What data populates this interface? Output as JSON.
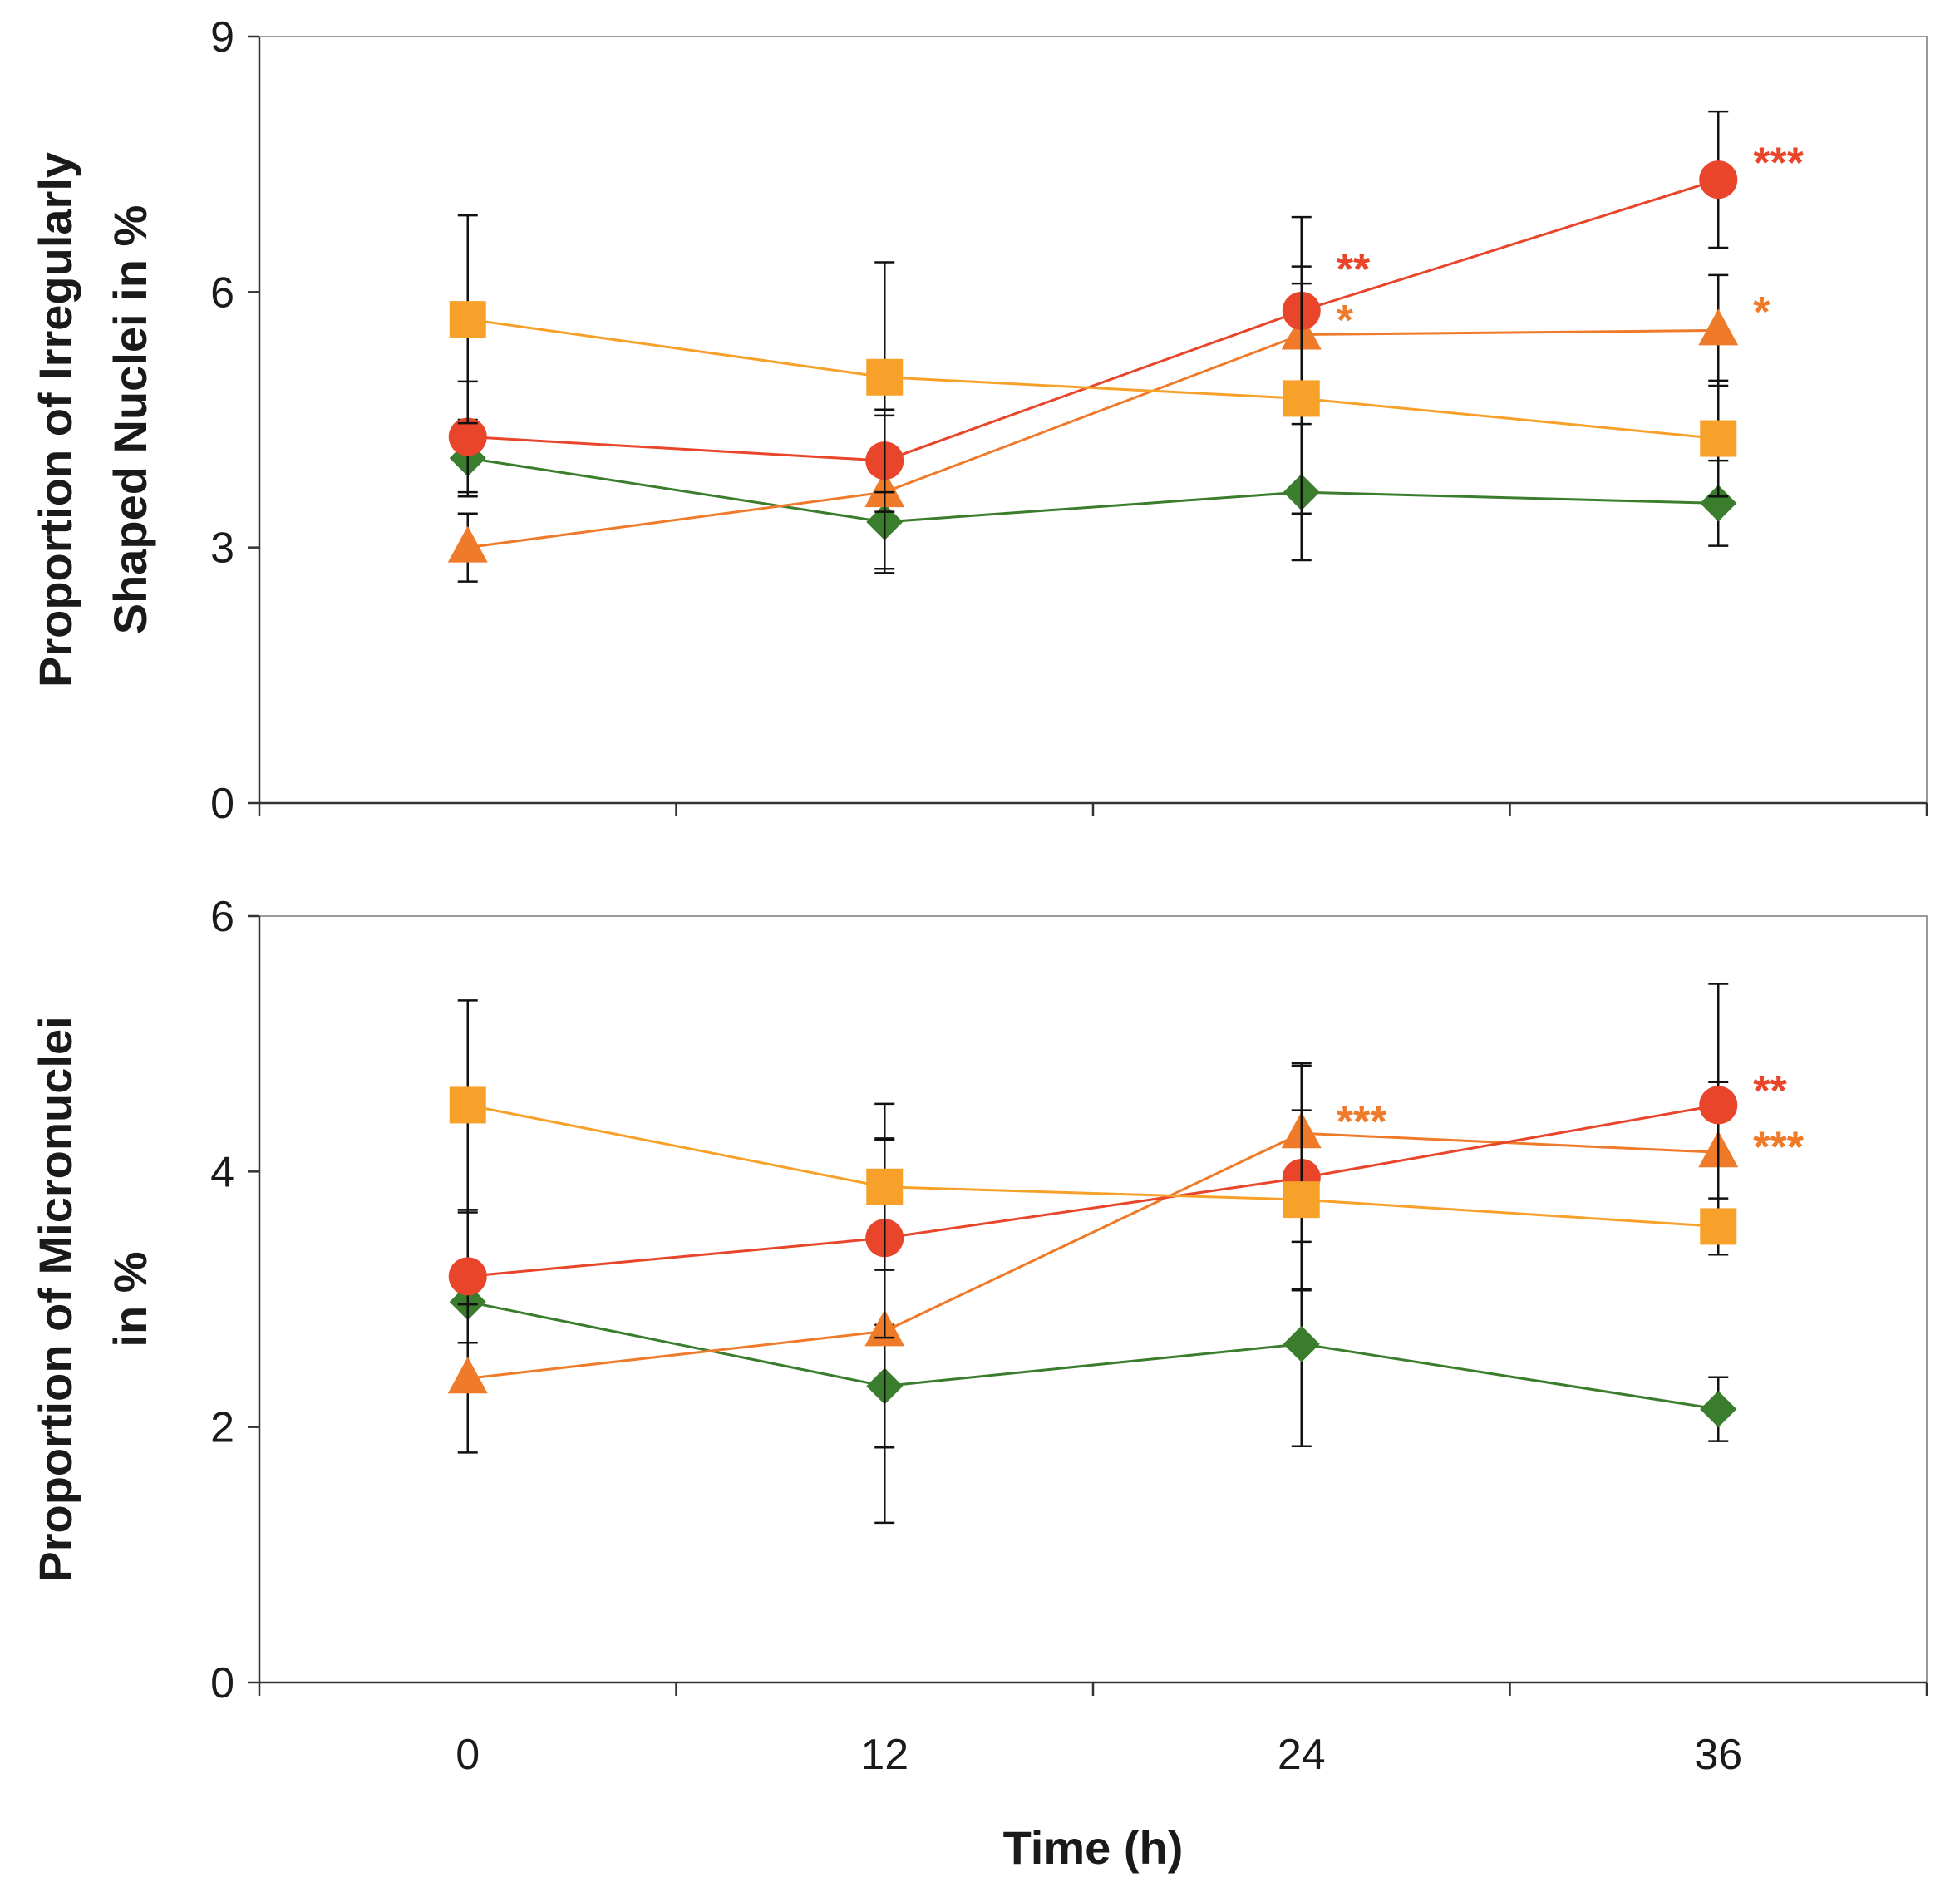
{
  "xlabel": "Time (h)",
  "chart_data": [
    {
      "type": "line",
      "panel": "top",
      "ylabel": [
        "Proportion of Irregularly",
        "Shaped Nuclei in %"
      ],
      "xlabel": "Time (h)",
      "x": [
        0,
        12,
        24,
        36
      ],
      "xticks": [
        "0",
        "12",
        "24",
        "36"
      ],
      "yticks": [
        "0",
        "3",
        "6",
        "9"
      ],
      "ylim": [
        0,
        9
      ],
      "series": [
        {
          "name": "diamond-green",
          "marker": "diamond",
          "color": "#3a7d2c",
          "values": [
            4.05,
            3.3,
            3.65,
            3.52
          ],
          "err": [
            0.45,
            0.6,
            0.8,
            0.5
          ]
        },
        {
          "name": "triangle-orange",
          "marker": "triangle",
          "color": "#ef7b2a",
          "values": [
            3.0,
            3.65,
            5.5,
            5.55
          ],
          "err": [
            0.4,
            0.9,
            0.8,
            0.65
          ]
        },
        {
          "name": "circle-red",
          "marker": "circle",
          "color": "#e8452a",
          "values": [
            4.3,
            4.02,
            5.78,
            7.32
          ],
          "err": [
            0.65,
            0.6,
            1.1,
            0.8
          ]
        },
        {
          "name": "square-yellow",
          "marker": "square",
          "color": "#f7a12b",
          "values": [
            5.68,
            5.0,
            4.75,
            4.28
          ],
          "err": [
            1.22,
            1.35,
            1.35,
            0.68
          ]
        }
      ],
      "annotations": [
        {
          "x": 24,
          "y": 6.25,
          "text": "**",
          "color": "#e8452a"
        },
        {
          "x": 24,
          "y": 5.65,
          "text": "*",
          "color": "#ef7b2a"
        },
        {
          "x": 36,
          "y": 7.5,
          "text": "***",
          "color": "#e8452a"
        },
        {
          "x": 36,
          "y": 5.75,
          "text": "*",
          "color": "#ef7b2a"
        }
      ]
    },
    {
      "type": "line",
      "panel": "bottom",
      "ylabel": [
        "Proportion of Micronuclei",
        "in %"
      ],
      "xlabel": "Time (h)",
      "x": [
        0,
        12,
        24,
        36
      ],
      "xticks": [
        "0",
        "12",
        "24",
        "36"
      ],
      "yticks": [
        "0",
        "2",
        "4",
        "6"
      ],
      "ylim": [
        0,
        6
      ],
      "series": [
        {
          "name": "diamond-green",
          "marker": "diamond",
          "color": "#3a7d2c",
          "values": [
            2.98,
            2.32,
            2.65,
            2.14
          ],
          "err": [
            0.7,
            0.48,
            0.8,
            0.25
          ]
        },
        {
          "name": "triangle-orange",
          "marker": "triangle",
          "color": "#ef7b2a",
          "values": [
            2.38,
            2.75,
            4.3,
            4.15
          ],
          "err": [
            0.58,
            1.5,
            0.55,
            0.55
          ]
        },
        {
          "name": "circle-red",
          "marker": "circle",
          "color": "#e8452a",
          "values": [
            3.18,
            3.48,
            3.95,
            4.52
          ],
          "err": [
            0.52,
            0.78,
            0.88,
            0.95
          ]
        },
        {
          "name": "square-yellow",
          "marker": "square",
          "color": "#f7a12b",
          "values": [
            4.52,
            3.88,
            3.78,
            3.57
          ],
          "err": [
            0.82,
            0.65,
            0.7,
            0.22
          ]
        }
      ],
      "annotations": [
        {
          "x": 24,
          "y": 4.38,
          "text": "***",
          "color": "#ef7b2a"
        },
        {
          "x": 36,
          "y": 4.62,
          "text": "**",
          "color": "#e8452a"
        },
        {
          "x": 36,
          "y": 4.18,
          "text": "***",
          "color": "#ef7b2a"
        }
      ]
    }
  ]
}
